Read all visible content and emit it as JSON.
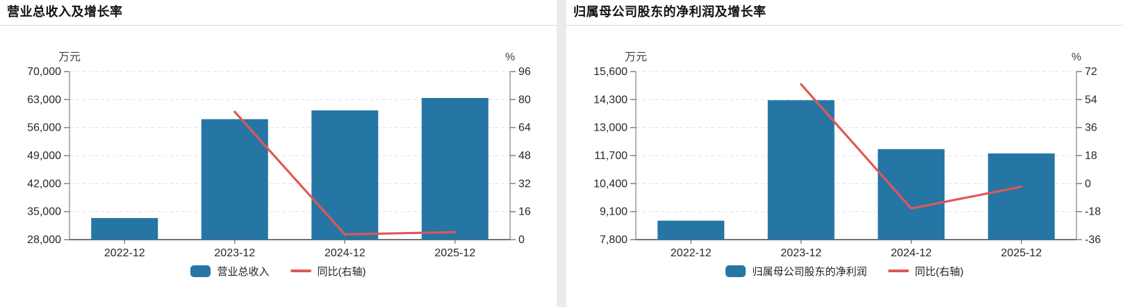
{
  "colors": {
    "bar": "#2576a4",
    "line": "#e15757",
    "grid": "#e0e0e0",
    "axis": "#808080",
    "axis_bottom": "#737373",
    "tick_text": "#262626",
    "unit_text": "#404040"
  },
  "chart_data": [
    {
      "type": "bar+line",
      "title": "营业总收入及增长率",
      "unit_left": "万元",
      "unit_right": "%",
      "categories": [
        "2022-12",
        "2023-12",
        "2024-12",
        "2025-12"
      ],
      "left_axis": {
        "min": 28000,
        "max": 70000,
        "ticks": [
          "70,000",
          "63,000",
          "56,000",
          "49,000",
          "42,000",
          "35,000",
          "28,000"
        ]
      },
      "right_axis": {
        "min": 0,
        "max": 96,
        "ticks": [
          "96",
          "80",
          "64",
          "48",
          "32",
          "16",
          "0"
        ]
      },
      "grid": "dashed",
      "legend_position": "bottom",
      "series": [
        {
          "name": "营业总收入",
          "type": "bar",
          "axis": "left",
          "values": [
            33400,
            58100,
            60300,
            63400
          ]
        },
        {
          "name": "同比(右轴)",
          "type": "line",
          "axis": "right",
          "values": [
            null,
            73,
            3,
            4.3
          ]
        }
      ]
    },
    {
      "type": "bar+line",
      "title": "归属母公司股东的净利润及增长率",
      "unit_left": "万元",
      "unit_right": "%",
      "categories": [
        "2022-12",
        "2023-12",
        "2024-12",
        "2025-12"
      ],
      "left_axis": {
        "min": 7800,
        "max": 15600,
        "ticks": [
          "15,600",
          "14,300",
          "13,000",
          "11,700",
          "10,400",
          "9,100",
          "7,800"
        ]
      },
      "right_axis": {
        "min": -36,
        "max": 72,
        "ticks": [
          "72",
          "54",
          "36",
          "18",
          "0",
          "-18",
          "-36"
        ]
      },
      "grid": "dashed",
      "legend_position": "bottom",
      "series": [
        {
          "name": "归属母公司股东的净利润",
          "type": "bar",
          "axis": "left",
          "values": [
            8680,
            14270,
            12000,
            11800
          ]
        },
        {
          "name": "同比(右轴)",
          "type": "line",
          "axis": "right",
          "values": [
            null,
            63.8,
            -16,
            -2
          ]
        }
      ]
    }
  ]
}
